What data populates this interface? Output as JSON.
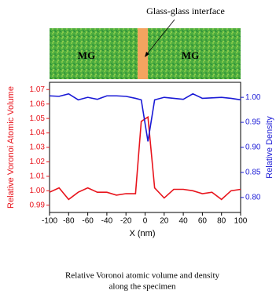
{
  "chart_data": {
    "type": "line",
    "specimen": {
      "annotation": "Glass-glass interface",
      "labels": [
        "MG",
        "MG"
      ]
    },
    "xlabel": "X (nm)",
    "ylabel": "Relative Voronoi Atomic Volume",
    "y2label": "Relative Density",
    "x": [
      -100,
      -90,
      -80,
      -70,
      -60,
      -50,
      -40,
      -30,
      -20,
      -10,
      -4,
      3,
      10,
      20,
      30,
      40,
      50,
      60,
      70,
      80,
      90,
      100
    ],
    "series": [
      {
        "name": "Relative Voronoi Atomic Volume",
        "color": "#e8141c",
        "axis": "y",
        "values": [
          0.999,
          1.002,
          0.994,
          0.999,
          1.002,
          0.999,
          0.999,
          0.997,
          0.998,
          0.998,
          1.048,
          1.051,
          1.002,
          0.995,
          1.001,
          1.001,
          1.0,
          0.998,
          0.999,
          0.994,
          1.0,
          1.001
        ]
      },
      {
        "name": "Relative Density",
        "color": "#1a1ad6",
        "axis": "y2",
        "values": [
          1.003,
          1.002,
          1.007,
          0.995,
          1.0,
          0.996,
          1.003,
          1.003,
          1.002,
          0.998,
          0.995,
          0.912,
          0.995,
          1.0,
          0.998,
          0.996,
          1.007,
          0.998,
          0.999,
          1.0,
          0.998,
          0.995
        ]
      }
    ],
    "xlim": [
      -100,
      100
    ],
    "xticks": [
      -100,
      -80,
      -60,
      -40,
      -20,
      0,
      20,
      40,
      60,
      80,
      100
    ],
    "ylim": [
      0.985,
      1.075
    ],
    "yticks": [
      0.99,
      {
        "value": 1,
        "label": "1.00"
      },
      1.01,
      1.02,
      1.03,
      1.04,
      1.05,
      1.06,
      1.07
    ],
    "y2lim": [
      0.77,
      1.03
    ],
    "y2ticks": [
      {
        "value": 0.8,
        "label": "0.80"
      },
      0.85,
      {
        "value": 0.9,
        "label": "0.90"
      },
      0.95,
      {
        "value": 1,
        "label": "1.00"
      }
    ],
    "caption": [
      "Relative Voronoi atomic volume and density",
      "along the specimen"
    ]
  }
}
